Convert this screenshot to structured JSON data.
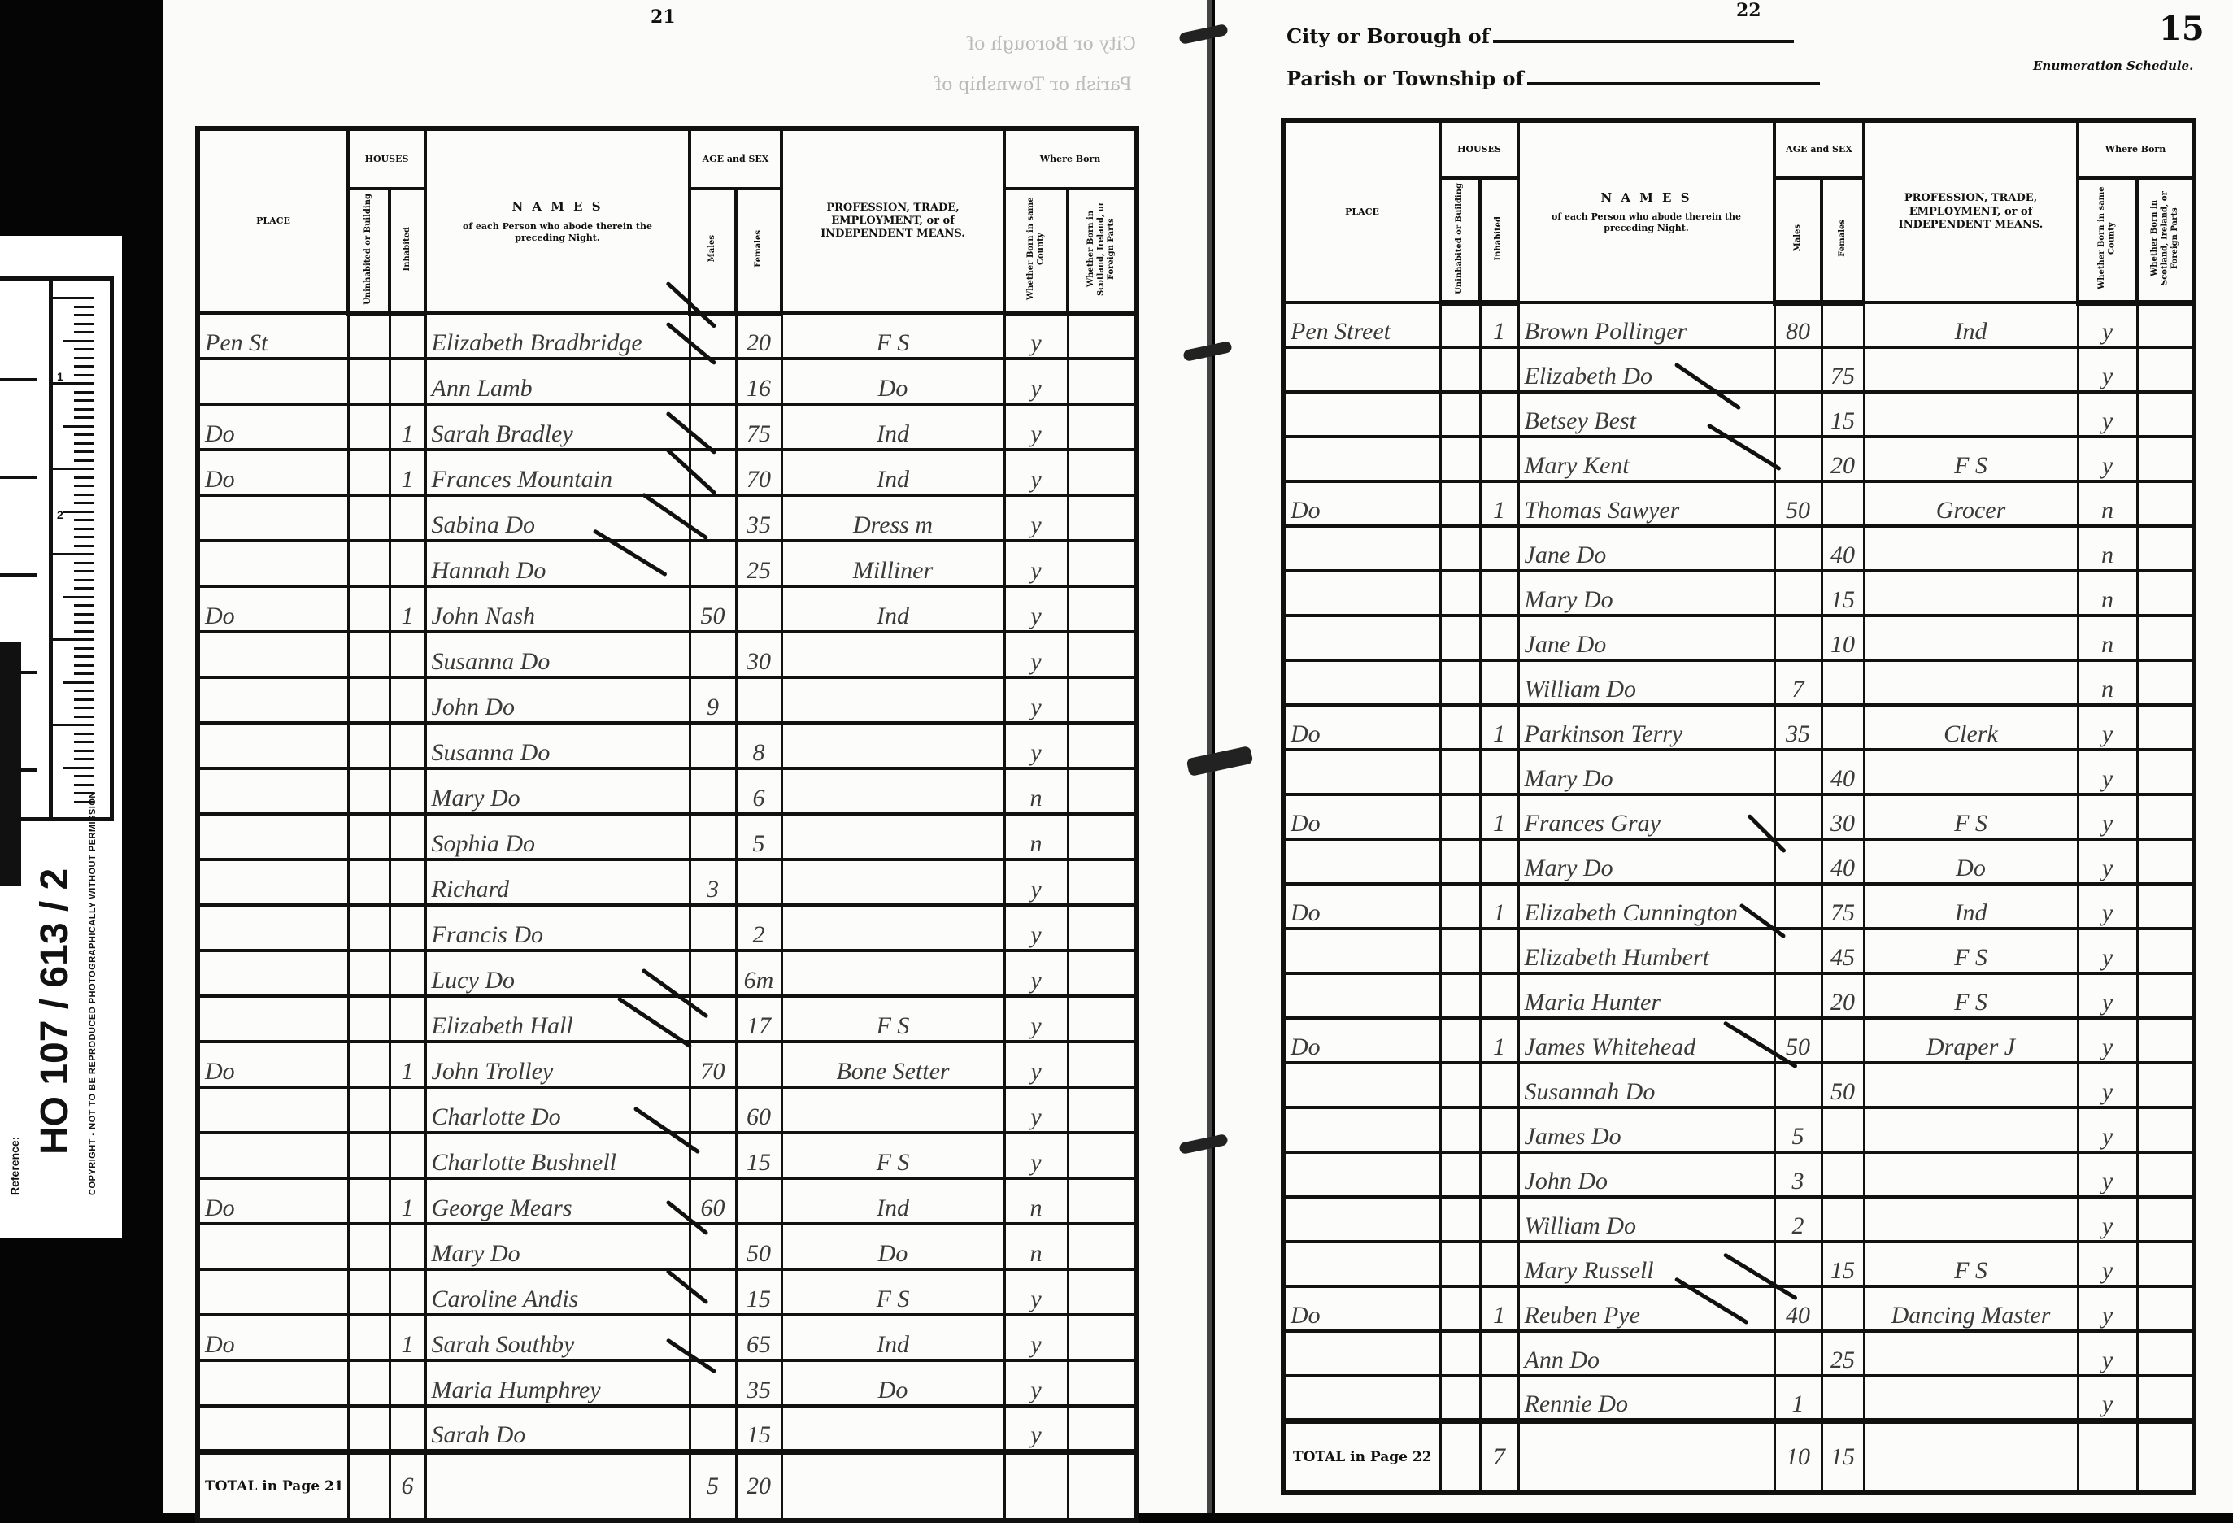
{
  "reference_card": {
    "label": "Reference:",
    "number": "HO 107 / 613 / 2",
    "copyright": "COPYRIGHT - NOT TO BE REPRODUCED PHOTOGRAPHICALLY WITHOUT PERMISSION",
    "ruler_marks": [
      "1",
      "2"
    ]
  },
  "headers": {
    "place": "PLACE",
    "houses": "HOUSES",
    "uninhabited": "Uninhabited or Building",
    "inhabited": "Inhabited",
    "names_title": "N A M E S",
    "names_sub": "of each Person who abode therein the preceding Night.",
    "age_sex": "AGE and SEX",
    "males": "Males",
    "females": "Females",
    "profession": "PROFESSION, TRADE, EMPLOYMENT, or of INDEPENDENT MEANS.",
    "where_born": "Where Born",
    "same_county": "Whether Born in same County",
    "elsewhere": "Whether Born in Scotland, Ireland, or Foreign Parts"
  },
  "left_page": {
    "page_number": "21",
    "bleed_city": "City or Borough of",
    "bleed_parish": "Parish or Township of",
    "total_label": "TOTAL in Page 21",
    "totals": {
      "uninhabited": "",
      "inhabited": "6",
      "male": "5",
      "female": "20"
    },
    "rows": [
      {
        "place": "Pen St",
        "u": "",
        "i": "",
        "name": "Elizabeth Bradbridge",
        "m": "",
        "f": "20",
        "prof": "F S",
        "same": "y",
        "else": ""
      },
      {
        "place": "",
        "u": "",
        "i": "",
        "name": "Ann Lamb",
        "m": "",
        "f": "16",
        "prof": "Do",
        "same": "y",
        "else": ""
      },
      {
        "place": "Do",
        "u": "",
        "i": "1",
        "name": "Sarah Bradley",
        "m": "",
        "f": "75",
        "prof": "Ind",
        "same": "y",
        "else": ""
      },
      {
        "place": "Do",
        "u": "",
        "i": "1",
        "name": "Frances Mountain",
        "m": "",
        "f": "70",
        "prof": "Ind",
        "same": "y",
        "else": ""
      },
      {
        "place": "",
        "u": "",
        "i": "",
        "name": "Sabina Do",
        "m": "",
        "f": "35",
        "prof": "Dress m",
        "same": "y",
        "else": ""
      },
      {
        "place": "",
        "u": "",
        "i": "",
        "name": "Hannah Do",
        "m": "",
        "f": "25",
        "prof": "Milliner",
        "same": "y",
        "else": ""
      },
      {
        "place": "Do",
        "u": "",
        "i": "1",
        "name": "John Nash",
        "m": "50",
        "f": "",
        "prof": "Ind",
        "same": "y",
        "else": ""
      },
      {
        "place": "",
        "u": "",
        "i": "",
        "name": "Susanna Do",
        "m": "",
        "f": "30",
        "prof": "",
        "same": "y",
        "else": ""
      },
      {
        "place": "",
        "u": "",
        "i": "",
        "name": "John Do",
        "m": "9",
        "f": "",
        "prof": "",
        "same": "y",
        "else": ""
      },
      {
        "place": "",
        "u": "",
        "i": "",
        "name": "Susanna Do",
        "m": "",
        "f": "8",
        "prof": "",
        "same": "y",
        "else": ""
      },
      {
        "place": "",
        "u": "",
        "i": "",
        "name": "Mary Do",
        "m": "",
        "f": "6",
        "prof": "",
        "same": "n",
        "else": ""
      },
      {
        "place": "",
        "u": "",
        "i": "",
        "name": "Sophia Do",
        "m": "",
        "f": "5",
        "prof": "",
        "same": "n",
        "else": ""
      },
      {
        "place": "",
        "u": "",
        "i": "",
        "name": "Richard",
        "m": "3",
        "f": "",
        "prof": "",
        "same": "y",
        "else": ""
      },
      {
        "place": "",
        "u": "",
        "i": "",
        "name": "Francis Do",
        "m": "",
        "f": "2",
        "prof": "",
        "same": "y",
        "else": ""
      },
      {
        "place": "",
        "u": "",
        "i": "",
        "name": "Lucy Do",
        "m": "",
        "f": "6m",
        "prof": "",
        "same": "y",
        "else": ""
      },
      {
        "place": "",
        "u": "",
        "i": "",
        "name": "Elizabeth Hall",
        "m": "",
        "f": "17",
        "prof": "F S",
        "same": "y",
        "else": ""
      },
      {
        "place": "Do",
        "u": "",
        "i": "1",
        "name": "John Trolley",
        "m": "70",
        "f": "",
        "prof": "Bone Setter",
        "same": "y",
        "else": ""
      },
      {
        "place": "",
        "u": "",
        "i": "",
        "name": "Charlotte Do",
        "m": "",
        "f": "60",
        "prof": "",
        "same": "y",
        "else": ""
      },
      {
        "place": "",
        "u": "",
        "i": "",
        "name": "Charlotte Bushnell",
        "m": "",
        "f": "15",
        "prof": "F S",
        "same": "y",
        "else": ""
      },
      {
        "place": "Do",
        "u": "",
        "i": "1",
        "name": "George Mears",
        "m": "60",
        "f": "",
        "prof": "Ind",
        "same": "n",
        "else": ""
      },
      {
        "place": "",
        "u": "",
        "i": "",
        "name": "Mary Do",
        "m": "",
        "f": "50",
        "prof": "Do",
        "same": "n",
        "else": ""
      },
      {
        "place": "",
        "u": "",
        "i": "",
        "name": "Caroline Andis",
        "m": "",
        "f": "15",
        "prof": "F S",
        "same": "y",
        "else": ""
      },
      {
        "place": "Do",
        "u": "",
        "i": "1",
        "name": "Sarah Southby",
        "m": "",
        "f": "65",
        "prof": "Ind",
        "same": "y",
        "else": ""
      },
      {
        "place": "",
        "u": "",
        "i": "",
        "name": "Maria Humphrey",
        "m": "",
        "f": "35",
        "prof": "Do",
        "same": "y",
        "else": ""
      },
      {
        "place": "",
        "u": "",
        "i": "",
        "name": "Sarah Do",
        "m": "",
        "f": "15",
        "prof": "",
        "same": "y",
        "else": ""
      }
    ]
  },
  "right_page": {
    "page_number": "22",
    "city_label": "City or Borough of",
    "parish_label": "Parish or Township of",
    "schedule_number": "15",
    "schedule_label": "Enumeration Schedule.",
    "total_label": "TOTAL in Page 22",
    "totals": {
      "uninhabited": "",
      "inhabited": "7",
      "male": "10",
      "female": "15"
    },
    "rows": [
      {
        "place": "Pen Street",
        "u": "",
        "i": "1",
        "name": "Brown Pollinger",
        "m": "80",
        "f": "",
        "prof": "Ind",
        "same": "y",
        "else": ""
      },
      {
        "place": "",
        "u": "",
        "i": "",
        "name": "Elizabeth Do",
        "m": "",
        "f": "75",
        "prof": "",
        "same": "y",
        "else": ""
      },
      {
        "place": "",
        "u": "",
        "i": "",
        "name": "Betsey Best",
        "m": "",
        "f": "15",
        "prof": "",
        "same": "y",
        "else": ""
      },
      {
        "place": "",
        "u": "",
        "i": "",
        "name": "Mary Kent",
        "m": "",
        "f": "20",
        "prof": "F S",
        "same": "y",
        "else": ""
      },
      {
        "place": "Do",
        "u": "",
        "i": "1",
        "name": "Thomas Sawyer",
        "m": "50",
        "f": "",
        "prof": "Grocer",
        "same": "n",
        "else": ""
      },
      {
        "place": "",
        "u": "",
        "i": "",
        "name": "Jane Do",
        "m": "",
        "f": "40",
        "prof": "",
        "same": "n",
        "else": ""
      },
      {
        "place": "",
        "u": "",
        "i": "",
        "name": "Mary Do",
        "m": "",
        "f": "15",
        "prof": "",
        "same": "n",
        "else": ""
      },
      {
        "place": "",
        "u": "",
        "i": "",
        "name": "Jane Do",
        "m": "",
        "f": "10",
        "prof": "",
        "same": "n",
        "else": ""
      },
      {
        "place": "",
        "u": "",
        "i": "",
        "name": "William Do",
        "m": "7",
        "f": "",
        "prof": "",
        "same": "n",
        "else": ""
      },
      {
        "place": "Do",
        "u": "",
        "i": "1",
        "name": "Parkinson Terry",
        "m": "35",
        "f": "",
        "prof": "Clerk",
        "same": "y",
        "else": ""
      },
      {
        "place": "",
        "u": "",
        "i": "",
        "name": "Mary Do",
        "m": "",
        "f": "40",
        "prof": "",
        "same": "y",
        "else": ""
      },
      {
        "place": "Do",
        "u": "",
        "i": "1",
        "name": "Frances Gray",
        "m": "",
        "f": "30",
        "prof": "F S",
        "same": "y",
        "else": ""
      },
      {
        "place": "",
        "u": "",
        "i": "",
        "name": "Mary Do",
        "m": "",
        "f": "40",
        "prof": "Do",
        "same": "y",
        "else": ""
      },
      {
        "place": "Do",
        "u": "",
        "i": "1",
        "name": "Elizabeth Cunnington",
        "m": "",
        "f": "75",
        "prof": "Ind",
        "same": "y",
        "else": ""
      },
      {
        "place": "",
        "u": "",
        "i": "",
        "name": "Elizabeth Humbert",
        "m": "",
        "f": "45",
        "prof": "F S",
        "same": "y",
        "else": ""
      },
      {
        "place": "",
        "u": "",
        "i": "",
        "name": "Maria Hunter",
        "m": "",
        "f": "20",
        "prof": "F S",
        "same": "y",
        "else": ""
      },
      {
        "place": "Do",
        "u": "",
        "i": "1",
        "name": "James Whitehead",
        "m": "50",
        "f": "",
        "prof": "Draper J",
        "same": "y",
        "else": ""
      },
      {
        "place": "",
        "u": "",
        "i": "",
        "name": "Susannah Do",
        "m": "",
        "f": "50",
        "prof": "",
        "same": "y",
        "else": ""
      },
      {
        "place": "",
        "u": "",
        "i": "",
        "name": "James Do",
        "m": "5",
        "f": "",
        "prof": "",
        "same": "y",
        "else": ""
      },
      {
        "place": "",
        "u": "",
        "i": "",
        "name": "John Do",
        "m": "3",
        "f": "",
        "prof": "",
        "same": "y",
        "else": ""
      },
      {
        "place": "",
        "u": "",
        "i": "",
        "name": "William Do",
        "m": "2",
        "f": "",
        "prof": "",
        "same": "y",
        "else": ""
      },
      {
        "place": "",
        "u": "",
        "i": "",
        "name": "Mary Russell",
        "m": "",
        "f": "15",
        "prof": "F S",
        "same": "y",
        "else": ""
      },
      {
        "place": "Do",
        "u": "",
        "i": "1",
        "name": "Reuben Pye",
        "m": "40",
        "f": "",
        "prof": "Dancing Master",
        "same": "y",
        "else": ""
      },
      {
        "place": "",
        "u": "",
        "i": "",
        "name": "Ann Do",
        "m": "",
        "f": "25",
        "prof": "",
        "same": "y",
        "else": ""
      },
      {
        "place": "",
        "u": "",
        "i": "",
        "name": "Rennie Do",
        "m": "1",
        "f": "",
        "prof": "",
        "same": "y",
        "else": ""
      }
    ]
  }
}
